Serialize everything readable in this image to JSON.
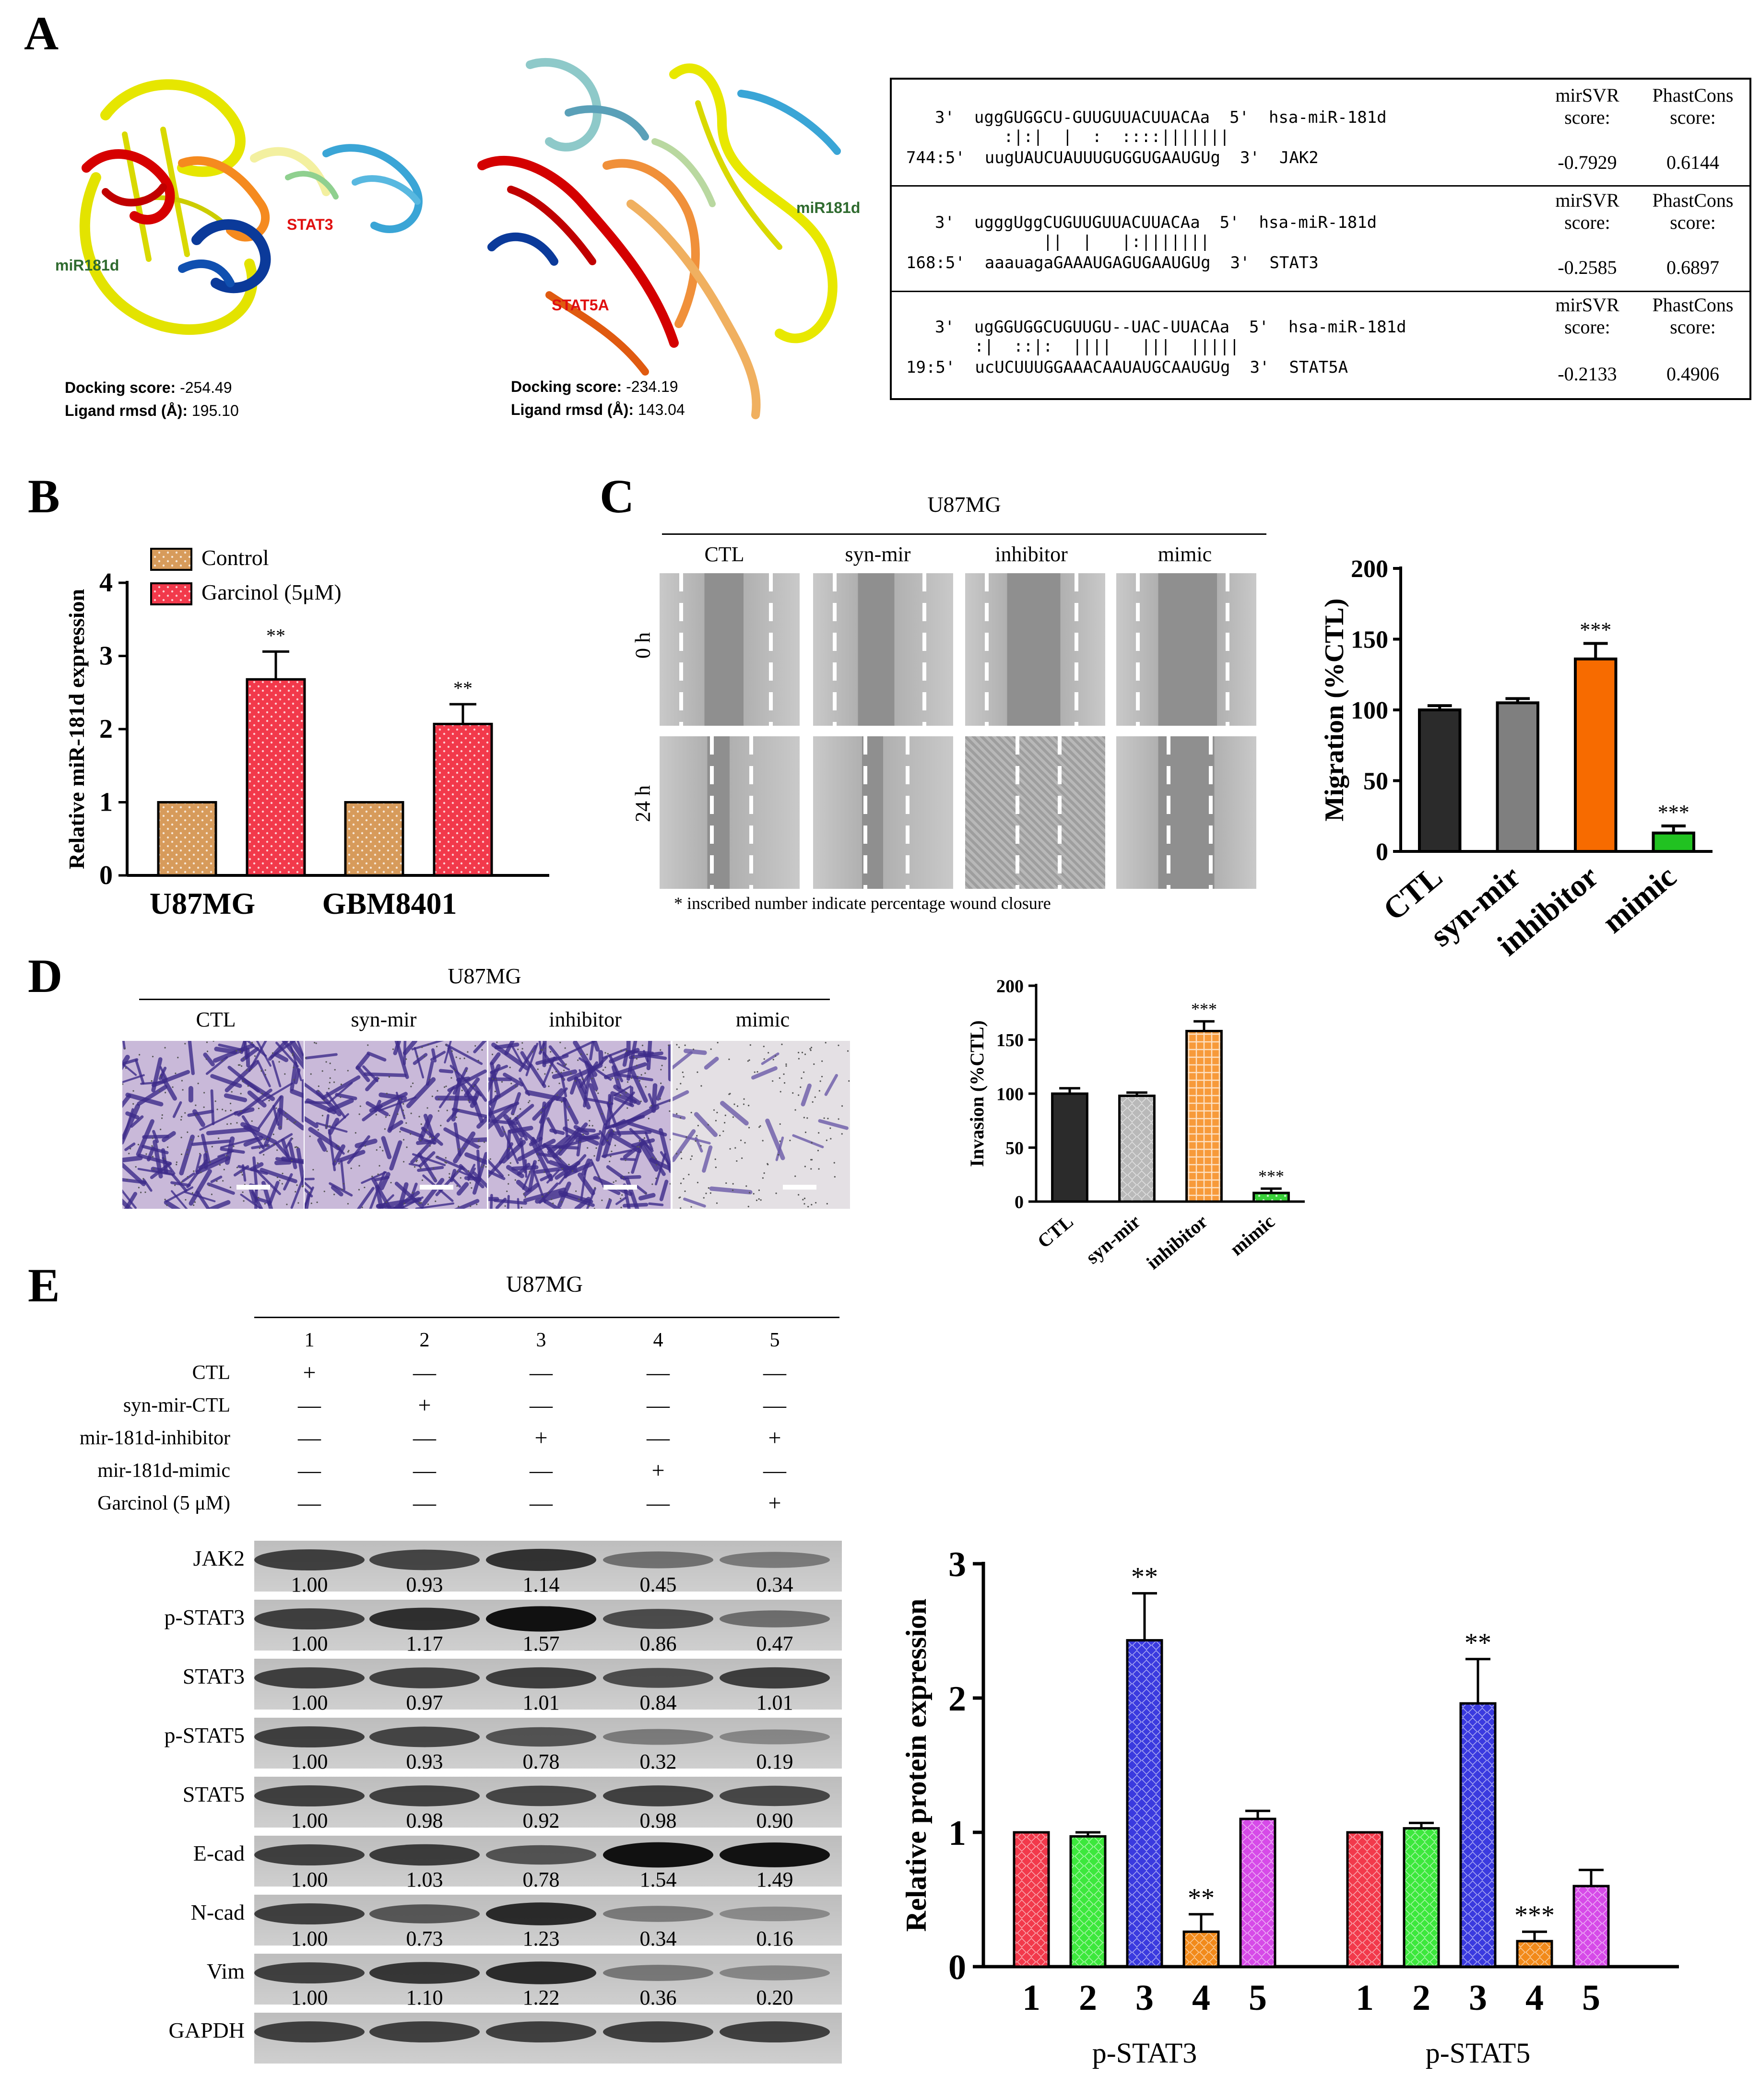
{
  "panels": {
    "A": "A",
    "B": "B",
    "C": "C",
    "D": "D",
    "E": "E"
  },
  "panel_a": {
    "models": [
      {
        "mir_label": "miR181d",
        "protein_label": "STAT3",
        "docking_label": "Docking score:",
        "docking_value": "-254.49",
        "rmsd_label": "Ligand rmsd (Å):",
        "rmsd_value": "195.10"
      },
      {
        "mir_label": "miR181d",
        "protein_label": "STAT5A",
        "docking_label": "Docking score:",
        "docking_value": "-234.19",
        "rmsd_label": "Ligand rmsd (Å):",
        "rmsd_value": "143.04"
      }
    ],
    "alignments": [
      {
        "line1": "3'  uggGUGGCU-GUUGUUACUUACAa  5'  hsa-miR-181d",
        "line2": "       :|:|  |  :  ::::|||||||",
        "line3": "744:5'  uugUAUCUAUUUGUGGUGAAUGUg  3'  JAK2",
        "mirsvr_header": "mirSVR\nscore:",
        "phast_header": "PhastCons\nscore:",
        "mirsvr": "-0.7929",
        "phast": "0.6144"
      },
      {
        "line1": "3'  ugggUggCUGUUGUUACUUACAa  5'  hsa-miR-181d",
        "line2": "           ||  |   |:|||||||",
        "line3": "168:5'  aaauagaGAAAUGAGUGAAUGUg  3'  STAT3",
        "mirsvr_header": "mirSVR\nscore:",
        "phast_header": "PhastCons\nscore:",
        "mirsvr": "-0.2585",
        "phast": "0.6897"
      },
      {
        "line1": "3'  ugGGUGGCUGUUGU--UAC-UUACAa  5'  hsa-miR-181d",
        "line2": "    :|  ::|:  ||||   |||  |||||",
        "line3": "19:5'  ucUCUUUGGAAACAAUAUGCAAUGUg  3'  STAT5A",
        "mirsvr_header": "mirSVR\nscore:",
        "phast_header": "PhastCons\nscore:",
        "mirsvr": "-0.2133",
        "phast": "0.4906"
      }
    ]
  },
  "panel_b": {
    "chart_data": {
      "type": "bar",
      "ylabel": "Relative miR-181d expression",
      "ylim": [
        0,
        4
      ],
      "yticks": [
        "0",
        "1",
        "2",
        "3",
        "4"
      ],
      "categories": [
        "U87MG",
        "GBM8401"
      ],
      "series": [
        {
          "name": "Control",
          "values": [
            1,
            1
          ],
          "errors": [
            0,
            0
          ],
          "color": "#d79b5b"
        },
        {
          "name": "Garcinol (5μM)",
          "values": [
            2.68,
            2.07
          ],
          "errors": [
            0.38,
            0.27
          ],
          "color": "#f2394b"
        }
      ],
      "annotations": [
        "**",
        "**"
      ]
    }
  },
  "panel_c": {
    "cell_line": "U87MG",
    "conditions": [
      "CTL",
      "syn-mir",
      "inhibitor",
      "mimic"
    ],
    "times": [
      "0 h",
      "24 h"
    ],
    "footnote": "* inscribed number indicate percentage wound closure",
    "chart_data": {
      "type": "bar",
      "ylabel": "Migration (%CTL)",
      "ylim": [
        0,
        200
      ],
      "yticks": [
        "0",
        "50",
        "100",
        "150",
        "200"
      ],
      "categories": [
        "CTL",
        "syn-mir",
        "inhibitor",
        "mimic"
      ],
      "values": [
        100,
        105,
        136,
        13
      ],
      "errors": [
        3,
        3,
        11,
        5
      ],
      "colors": [
        "#2b2b2b",
        "#7f7f7f",
        "#f76b00",
        "#21c221"
      ],
      "annotations": [
        "",
        "",
        "***",
        "***"
      ]
    }
  },
  "panel_d": {
    "cell_line": "U87MG",
    "conditions": [
      "CTL",
      "syn-mir",
      "inhibitor",
      "mimic"
    ],
    "chart_data": {
      "type": "bar",
      "ylabel": "Invasion (%CTL)",
      "ylim": [
        0,
        200
      ],
      "yticks": [
        "0",
        "50",
        "100",
        "150",
        "200"
      ],
      "categories": [
        "CTL",
        "syn-mir",
        "inhibitor",
        "mimic"
      ],
      "values": [
        100,
        98,
        158,
        8
      ],
      "errors": [
        5,
        3,
        9,
        4
      ],
      "colors": [
        "#2b2b2b",
        "#b9b9b9",
        "#f79a3a",
        "#38d038"
      ],
      "annotations": [
        "",
        "",
        "***",
        "***"
      ]
    }
  },
  "panel_e": {
    "cell_line": "U87MG",
    "lanes": [
      "1",
      "2",
      "3",
      "4",
      "5"
    ],
    "treatments": [
      {
        "label": "CTL",
        "marks": [
          "+",
          "—",
          "—",
          "—",
          "—"
        ]
      },
      {
        "label": "syn-mir-CTL",
        "marks": [
          "—",
          "+",
          "—",
          "—",
          "—"
        ]
      },
      {
        "label": "mir-181d-inhibitor",
        "marks": [
          "—",
          "—",
          "+",
          "—",
          "+"
        ]
      },
      {
        "label": "mir-181d-mimic",
        "marks": [
          "—",
          "—",
          "—",
          "+",
          "—"
        ]
      },
      {
        "label": "Garcinol (5 μM)",
        "marks": [
          "—",
          "—",
          "—",
          "—",
          "+"
        ]
      }
    ],
    "blots": [
      {
        "name": "JAK2",
        "values": [
          "1.00",
          "0.93",
          "1.14",
          "0.45",
          "0.34"
        ]
      },
      {
        "name": "p-STAT3",
        "values": [
          "1.00",
          "1.17",
          "1.57",
          "0.86",
          "0.47"
        ]
      },
      {
        "name": "STAT3",
        "values": [
          "1.00",
          "0.97",
          "1.01",
          "0.84",
          "1.01"
        ]
      },
      {
        "name": "p-STAT5",
        "values": [
          "1.00",
          "0.93",
          "0.78",
          "0.32",
          "0.19"
        ]
      },
      {
        "name": "STAT5",
        "values": [
          "1.00",
          "0.98",
          "0.92",
          "0.98",
          "0.90"
        ]
      },
      {
        "name": "E-cad",
        "values": [
          "1.00",
          "1.03",
          "0.78",
          "1.54",
          "1.49"
        ]
      },
      {
        "name": "N-cad",
        "values": [
          "1.00",
          "0.73",
          "1.23",
          "0.34",
          "0.16"
        ]
      },
      {
        "name": "Vim",
        "values": [
          "1.00",
          "1.10",
          "1.22",
          "0.36",
          "0.20"
        ]
      },
      {
        "name": "GAPDH",
        "values": []
      }
    ],
    "chart_data": {
      "type": "bar",
      "ylabel": "Relative protein expression",
      "ylim": [
        0,
        3
      ],
      "yticks": [
        "0",
        "1",
        "2",
        "3"
      ],
      "groups": [
        "p-STAT3",
        "p-STAT5"
      ],
      "lane_labels": [
        "1",
        "2",
        "3",
        "4",
        "5"
      ],
      "colors": [
        "#f2394b",
        "#3ce83c",
        "#3a3adf",
        "#f28a1a",
        "#d64ae8"
      ],
      "series": [
        {
          "group": "p-STAT3",
          "values": [
            1.0,
            0.97,
            2.43,
            0.26,
            1.1
          ],
          "errors": [
            0,
            0.03,
            0.35,
            0.13,
            0.06
          ],
          "annotations": [
            "",
            "",
            "**",
            "**",
            ""
          ]
        },
        {
          "group": "p-STAT5",
          "values": [
            1.0,
            1.03,
            1.96,
            0.19,
            0.6
          ],
          "errors": [
            0,
            0.04,
            0.33,
            0.07,
            0.12
          ],
          "annotations": [
            "",
            "",
            "**",
            "***",
            ""
          ]
        }
      ]
    }
  }
}
